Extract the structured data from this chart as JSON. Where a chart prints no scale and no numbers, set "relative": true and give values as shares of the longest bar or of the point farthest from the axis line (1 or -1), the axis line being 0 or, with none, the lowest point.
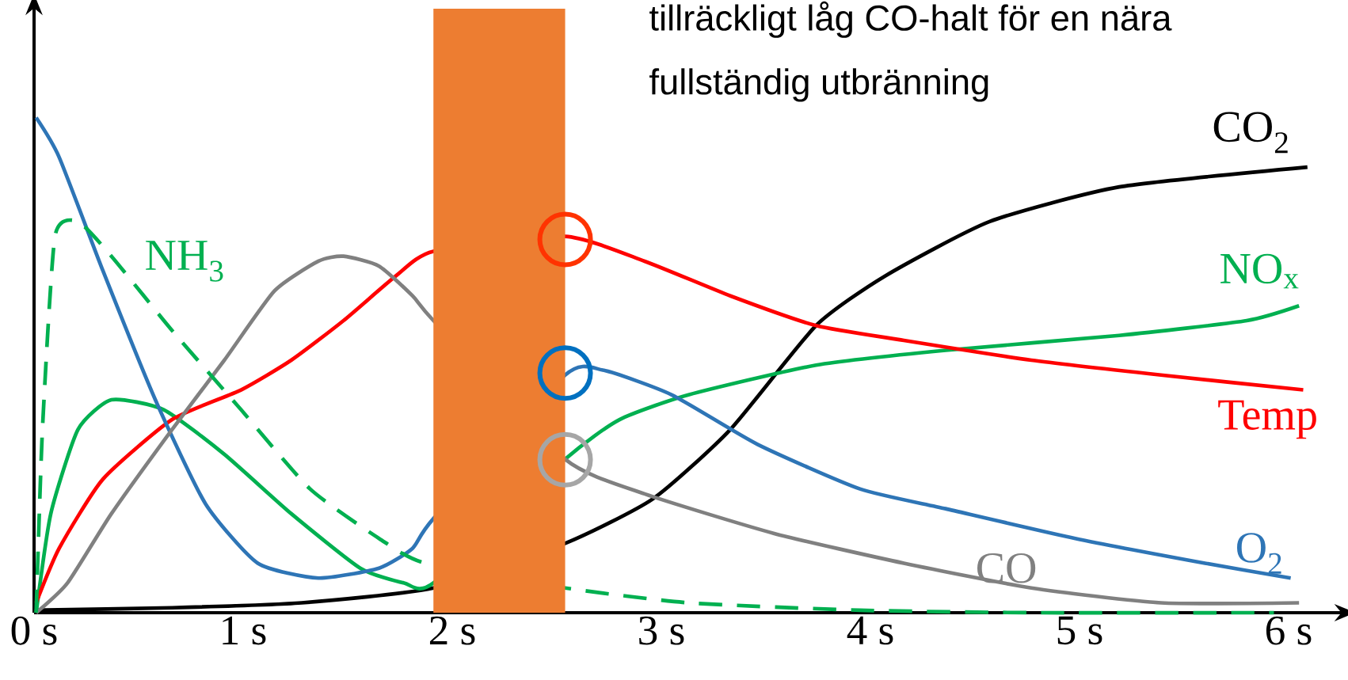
{
  "chart_data": {
    "type": "line",
    "relative": true,
    "xlim": [
      0,
      6.25
    ],
    "xticks": [
      {
        "value": 0,
        "label": "0 s"
      },
      {
        "value": 1,
        "label": "1 s"
      },
      {
        "value": 2,
        "label": "2 s"
      },
      {
        "value": 3,
        "label": "3 s"
      },
      {
        "value": 4,
        "label": "4 s"
      },
      {
        "value": 5,
        "label": "5 s"
      },
      {
        "value": 6,
        "label": "6 s"
      }
    ],
    "annotations": [
      "tillräckligt låg CO-halt för en nära",
      "fullständig utbränning"
    ],
    "bands": [
      {
        "axis": "x",
        "from": 1.91,
        "to": 2.54,
        "color": "#ed7d31"
      }
    ],
    "series": [
      {
        "name": "CO$_{2}$",
        "color": "#000000",
        "x": [
          0,
          0.66,
          1.28,
          1.91,
          2.54,
          2.96,
          3.33,
          3.74,
          4.07,
          4.57,
          5.19,
          6.09
        ],
        "values": [
          0.005,
          0.01,
          0.02,
          0.05,
          0.14,
          0.23,
          0.37,
          0.58,
          0.68,
          0.79,
          0.86,
          0.9
        ]
      },
      {
        "name": "NO$_{x}$",
        "color": "#00b050",
        "x": [
          0.01,
          0.08,
          0.21,
          0.37,
          0.62,
          0.91,
          1.23,
          1.56,
          1.77,
          1.91,
          2.54,
          2.8,
          3.13,
          3.74,
          4.36,
          5.19,
          5.8,
          6.05
        ],
        "values": [
          0,
          0.2,
          0.37,
          0.43,
          0.41,
          0.32,
          0.2,
          0.09,
          0.06,
          0.06,
          0.31,
          0.39,
          0.44,
          0.5,
          0.53,
          0.56,
          0.59,
          0.62
        ]
      },
      {
        "name": "Temp",
        "color": "#ff0000",
        "x": [
          0.01,
          0.12,
          0.33,
          0.66,
          0.99,
          1.23,
          1.48,
          1.73,
          1.91,
          2.54,
          2.92,
          3.33,
          3.74,
          4.16,
          4.77,
          5.39,
          6.07
        ],
        "values": [
          0.02,
          0.13,
          0.27,
          0.39,
          0.45,
          0.51,
          0.59,
          0.68,
          0.73,
          0.76,
          0.71,
          0.64,
          0.58,
          0.55,
          0.51,
          0.48,
          0.45
        ]
      },
      {
        "name": "O$_{2}$",
        "color": "#2e75b6",
        "x": [
          0.01,
          0.12,
          0.33,
          0.58,
          0.82,
          1.07,
          1.36,
          1.65,
          1.81,
          1.91,
          2.54,
          2.72,
          3.05,
          3.46,
          3.95,
          4.36,
          4.98,
          5.6,
          6.01
        ],
        "values": [
          1,
          0.92,
          0.69,
          0.43,
          0.22,
          0.1,
          0.07,
          0.09,
          0.13,
          0.19,
          0.48,
          0.49,
          0.44,
          0.34,
          0.25,
          0.21,
          0.15,
          0.1,
          0.07
        ]
      },
      {
        "name": "CO",
        "color": "#808080",
        "x": [
          0.01,
          0.16,
          0.37,
          0.66,
          0.91,
          1.15,
          1.36,
          1.48,
          1.65,
          1.81,
          1.91,
          2.54,
          2.92,
          3.54,
          4.16,
          4.77,
          5.39,
          6.05
        ],
        "values": [
          0,
          0.06,
          0.2,
          0.37,
          0.51,
          0.65,
          0.71,
          0.72,
          0.7,
          0.64,
          0.59,
          0.31,
          0.24,
          0.16,
          0.1,
          0.05,
          0.02,
          0.02
        ]
      },
      {
        "name": "NH$_{3}$",
        "color": "#00b050",
        "line_style": "dashed",
        "x": [
          0.01,
          0.04,
          0.1,
          0.21,
          0.37,
          0.66,
          0.99,
          1.32,
          1.65,
          1.87,
          2.54,
          3.13,
          3.95,
          4.77,
          5.93
        ],
        "values": [
          0,
          0.37,
          0.76,
          0.79,
          0.72,
          0.57,
          0.41,
          0.25,
          0.15,
          0.1,
          0.05,
          0.02,
          0.005,
          0,
          0
        ]
      },
      {
        "type": "scatter",
        "color": "#ff3300",
        "x": [
          2.54
        ],
        "values": [
          0.754
        ]
      },
      {
        "type": "scatter",
        "color": "#0070c0",
        "x": [
          2.54
        ],
        "values": [
          0.484
        ]
      },
      {
        "type": "scatter",
        "color": "#a6a6a6",
        "x": [
          2.54
        ],
        "values": [
          0.309
        ]
      }
    ]
  }
}
